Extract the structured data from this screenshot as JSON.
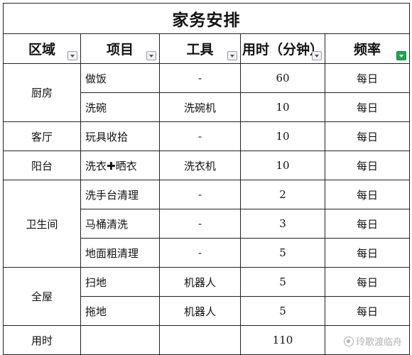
{
  "title": "家务安排",
  "headers": {
    "area": "区域",
    "item": "项目",
    "tool": "工具",
    "time": "用时（分钟）",
    "freq": "频率"
  },
  "areas": {
    "kitchen": "厨房",
    "living_room": "客厅",
    "balcony": "阳台",
    "bathroom": "卫生间",
    "whole_house": "全屋"
  },
  "rows": [
    {
      "item": "做饭",
      "tool": "-",
      "time": "60",
      "freq": "每日"
    },
    {
      "item": "洗碗",
      "tool": "洗碗机",
      "time": "10",
      "freq": "每日"
    },
    {
      "item": "玩具收拾",
      "tool": "-",
      "time": "10",
      "freq": "每日"
    },
    {
      "item_a": "洗衣",
      "plus": "✚",
      "item_b": "晒衣",
      "tool": "洗衣机",
      "time": "10",
      "freq": "每日"
    },
    {
      "item": "洗手台清理",
      "tool": "-",
      "time": "2",
      "freq": "每日"
    },
    {
      "item": "马桶清洗",
      "tool": "-",
      "time": "3",
      "freq": "每日"
    },
    {
      "item": "地面粗清理",
      "tool": "-",
      "time": "5",
      "freq": "每日"
    },
    {
      "item": "扫地",
      "tool": "机器人",
      "time": "5",
      "freq": "每日"
    },
    {
      "item": "拖地",
      "tool": "机器人",
      "time": "5",
      "freq": "每日"
    }
  ],
  "total": {
    "label": "用时",
    "time": "110"
  },
  "watermark": "玲歌渡临舟",
  "colors": {
    "filter_active": "#1aa84b",
    "border": "#222222"
  }
}
